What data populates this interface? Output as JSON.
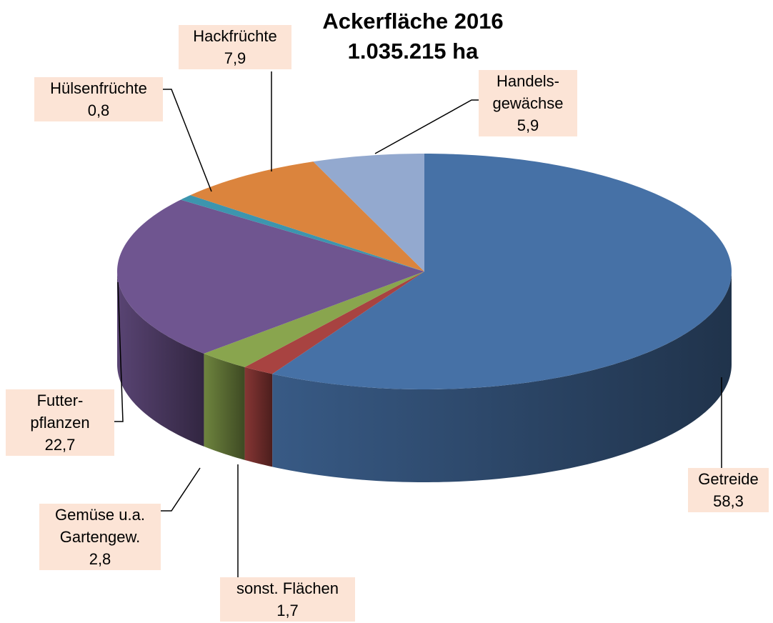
{
  "chart_data": {
    "type": "pie3d",
    "title": "Ackerfläche 2016",
    "subtitle": "1.035.215 ha",
    "categories": [
      "Getreide",
      "sonst. Flächen",
      "Gemüse u.a.\nGartengew.",
      "Futter-\npflanzen",
      "Hülsenfrüchte",
      "Hackfrüchte",
      "Handels-\ngewächse"
    ],
    "values": [
      58.3,
      1.7,
      2.8,
      22.7,
      0.8,
      7.9,
      5.9
    ],
    "value_labels": [
      "58,3",
      "1,7",
      "2,8",
      "22,7",
      "0,8",
      "7,9",
      "5,9"
    ],
    "colors": [
      "#4671a6",
      "#a84341",
      "#89a54e",
      "#6f5590",
      "#3d95ae",
      "#db843d",
      "#93a9cf"
    ]
  }
}
